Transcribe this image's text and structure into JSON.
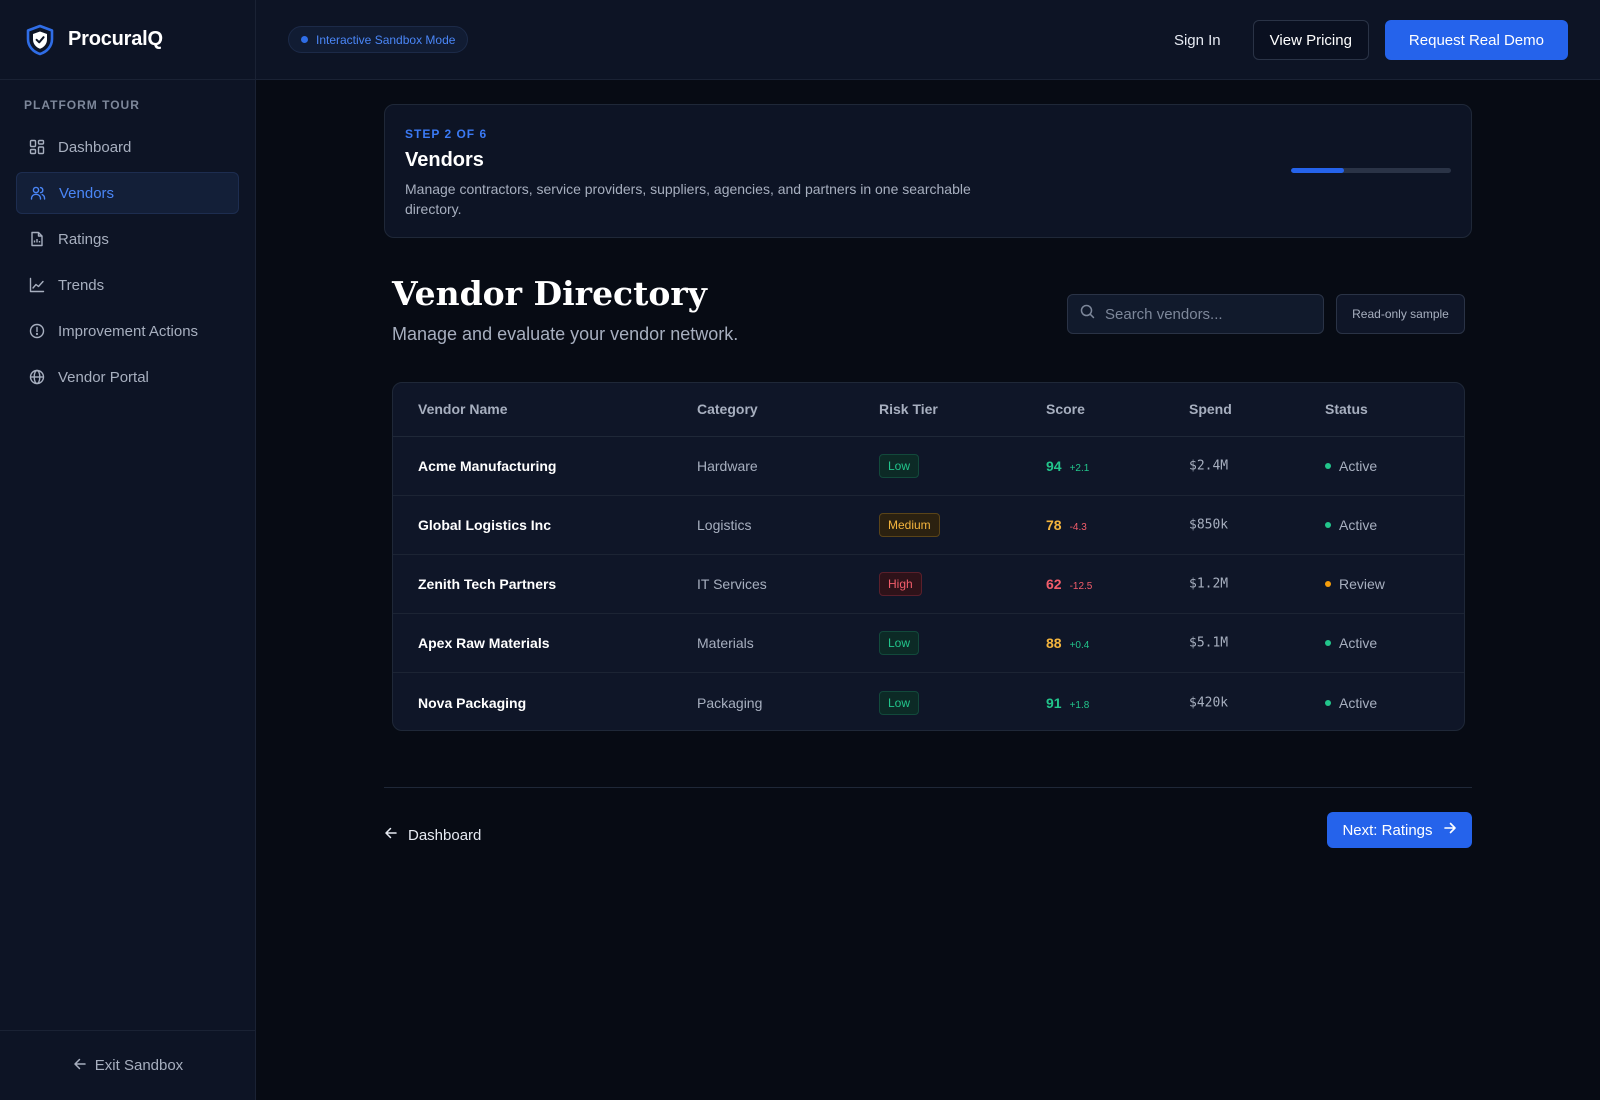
{
  "app": {
    "name": "ProcuralQ"
  },
  "sidebar": {
    "section_title": "PLATFORM TOUR",
    "items": [
      {
        "label": "Dashboard",
        "icon": "grid-icon"
      },
      {
        "label": "Vendors",
        "icon": "users-icon"
      },
      {
        "label": "Ratings",
        "icon": "document-icon"
      },
      {
        "label": "Trends",
        "icon": "chart-icon"
      },
      {
        "label": "Improvement Actions",
        "icon": "alert-circle-icon"
      },
      {
        "label": "Vendor Portal",
        "icon": "globe-icon"
      }
    ],
    "active_item": "Vendors",
    "exit_label": "Exit Sandbox"
  },
  "topbar": {
    "sandbox_label": "Interactive Sandbox Mode",
    "sign_in": "Sign In",
    "view_pricing": "View Pricing",
    "request_demo": "Request Real Demo"
  },
  "step": {
    "label": "STEP 2 OF 6",
    "title": "Vendors",
    "description": "Manage contractors, service providers, suppliers, agencies, and partners in one searchable directory.",
    "progress_fraction": 0.333
  },
  "directory": {
    "title": "Vendor Directory",
    "subtitle": "Manage and evaluate your vendor network.",
    "search_placeholder": "Search vendors...",
    "readonly_label": "Read-only sample"
  },
  "table": {
    "headers": {
      "name": "Vendor Name",
      "category": "Category",
      "risk": "Risk Tier",
      "score": "Score",
      "spend": "Spend",
      "status": "Status"
    },
    "rows": [
      {
        "name": "Acme Manufacturing",
        "category": "Hardware",
        "risk": "Low",
        "score": "94",
        "delta": "+2.1",
        "spend": "$2.4M",
        "status": "Active"
      },
      {
        "name": "Global Logistics Inc",
        "category": "Logistics",
        "risk": "Medium",
        "score": "78",
        "delta": "-4.3",
        "spend": "$850k",
        "status": "Active"
      },
      {
        "name": "Zenith Tech Partners",
        "category": "IT Services",
        "risk": "High",
        "score": "62",
        "delta": "-12.5",
        "spend": "$1.2M",
        "status": "Review"
      },
      {
        "name": "Apex Raw Materials",
        "category": "Materials",
        "risk": "Low",
        "score": "88",
        "delta": "+0.4",
        "spend": "$5.1M",
        "status": "Active"
      },
      {
        "name": "Nova Packaging",
        "category": "Packaging",
        "risk": "Low",
        "score": "91",
        "delta": "+1.8",
        "spend": "$420k",
        "status": "Active"
      }
    ]
  },
  "footer_nav": {
    "back_label": "Dashboard",
    "next_label": "Next: Ratings"
  },
  "colors": {
    "accent": "#2563eb",
    "score_green": "#22c58b",
    "score_amber": "#f5b53d",
    "score_red": "#f35d6b",
    "delta_positive": "#22c58b",
    "delta_negative": "#f35d6b",
    "status_active": "#22c58b",
    "status_review": "#f59e0b"
  }
}
